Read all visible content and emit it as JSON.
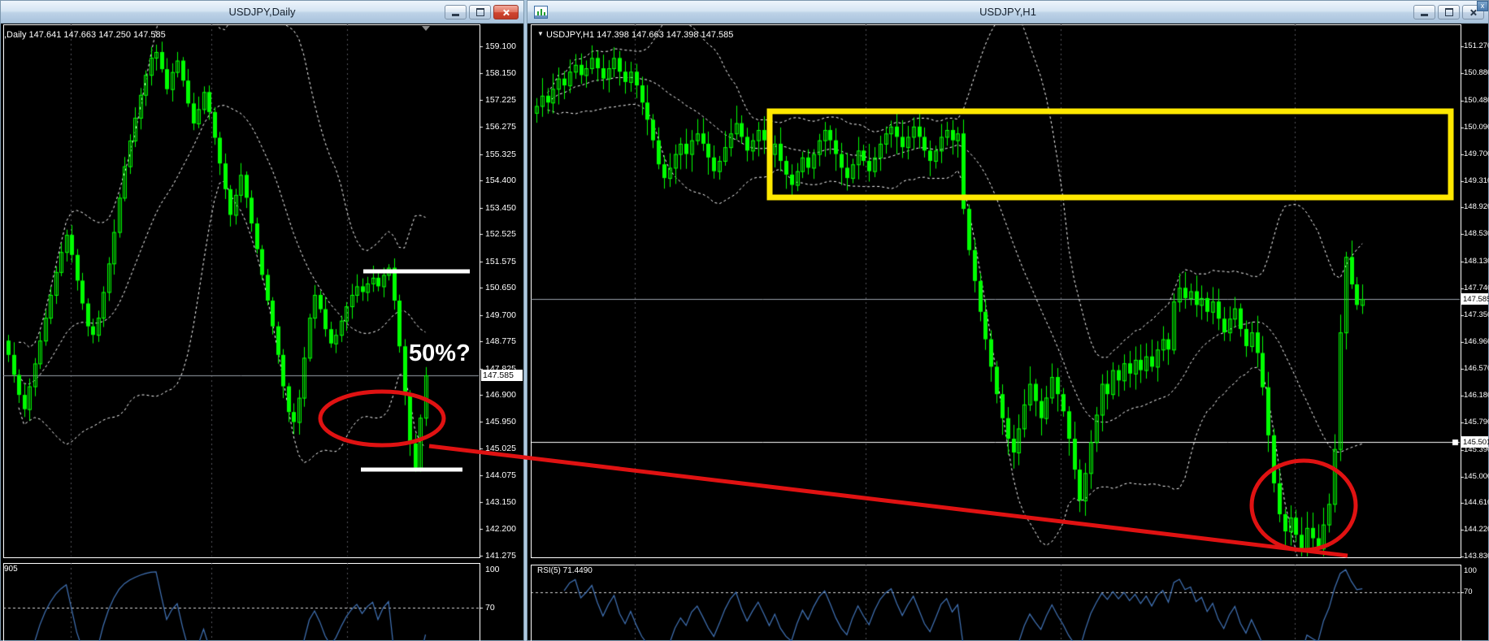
{
  "misc": {
    "corner_close_glyph": "x"
  },
  "colors": {
    "background": "#000000",
    "candle": "#00ff00",
    "bands": "#ffffff",
    "rsi_line": "#4274b8",
    "rsi_level": "#d9d9d9",
    "grid": "#55555c",
    "current_price_line": "#9aa2ab",
    "annotation_red": "#e01212",
    "annotation_yellow": "#ffe800",
    "annotation_white": "#ffffff"
  },
  "windows": {
    "left": {
      "title": "USDJPY,Daily",
      "window_buttons": [
        "minimize",
        "restore",
        "close"
      ],
      "ohlc_line": ",Daily 147.641 147.663 147.250 147.585",
      "price_axis": {
        "ticks": [
          "159.100",
          "158.150",
          "157.225",
          "156.275",
          "155.325",
          "154.400",
          "153.450",
          "152.525",
          "151.575",
          "150.650",
          "149.700",
          "148.775",
          "147.825",
          "146.900",
          "145.950",
          "145.025",
          "144.075",
          "143.150",
          "142.200",
          "141.275"
        ],
        "current_price": "147.585"
      },
      "rsi": {
        "label": "905",
        "level_top": "100",
        "level_70": "70"
      }
    },
    "right": {
      "title": "USDJPY,H1",
      "window_buttons": [
        "minimize",
        "restore",
        "close"
      ],
      "dropdown_glyph": "▼",
      "ohlc_line": "USDJPY,H1  147.398 147.663 147.398 147.585",
      "price_axis": {
        "ticks": [
          "151.270",
          "150.880",
          "150.480",
          "150.090",
          "149.700",
          "149.310",
          "148.920",
          "148.530",
          "148.130",
          "147.740",
          "147.350",
          "146.960",
          "146.570",
          "146.180",
          "145.790",
          "145.390",
          "145.000",
          "144.610",
          "144.220",
          "143.830"
        ],
        "current_price": "147.585",
        "hline_price": "145.501"
      },
      "rsi": {
        "label": "RSI(5) 71.4490",
        "level_top": "100",
        "level_70": "70"
      }
    }
  },
  "annotations": {
    "fifty_label": "50%?"
  },
  "chart_data": [
    {
      "type": "candlestick",
      "symbol": "USDJPY",
      "timeframe": "Daily",
      "title": "USDJPY,Daily",
      "ohlc_current": {
        "open": "147.641",
        "high": "147.663",
        "low": "147.250",
        "close": "147.585"
      },
      "y_ticks": [
        159.1,
        158.15,
        157.225,
        156.275,
        155.325,
        154.4,
        153.45,
        152.525,
        151.575,
        150.65,
        149.7,
        148.775,
        147.825,
        146.9,
        145.95,
        145.025,
        144.075,
        143.15,
        142.2,
        141.275
      ],
      "current_price": 147.585,
      "indicators": {
        "bollinger_period": 20,
        "bollinger_dev": 2,
        "rsi_period": 5,
        "rsi_level": 70
      },
      "first_open": 148.8,
      "closes": [
        148.3,
        147.6,
        146.9,
        146.4,
        147.2,
        148.0,
        148.8,
        149.6,
        150.4,
        151.2,
        151.9,
        152.5,
        151.8,
        150.9,
        150.1,
        149.3,
        149.0,
        149.6,
        150.5,
        151.5,
        152.6,
        153.8,
        154.9,
        155.8,
        156.6,
        157.4,
        158.1,
        158.7,
        158.9,
        158.3,
        157.6,
        158.2,
        158.6,
        157.9,
        157.1,
        156.4,
        156.9,
        157.5,
        156.8,
        155.9,
        155.0,
        154.1,
        153.2,
        153.9,
        154.6,
        153.8,
        152.9,
        152.0,
        151.1,
        150.2,
        149.3,
        148.3,
        147.2,
        146.3,
        145.95,
        146.8,
        148.2,
        149.6,
        150.4,
        149.9,
        149.2,
        148.7,
        149.0,
        149.5,
        150.0,
        150.4,
        150.7,
        150.5,
        150.8,
        151.0,
        150.7,
        151.1,
        151.35,
        150.2,
        148.6,
        146.9,
        145.2,
        144.35,
        146.1,
        147.585
      ]
    },
    {
      "type": "candlestick",
      "symbol": "USDJPY",
      "timeframe": "H1",
      "title": "USDJPY,H1",
      "ohlc_current": {
        "open": "147.398",
        "high": "147.663",
        "low": "147.398",
        "close": "147.585"
      },
      "y_ticks": [
        151.27,
        150.88,
        150.48,
        150.09,
        149.7,
        149.31,
        148.92,
        148.53,
        148.13,
        147.74,
        147.35,
        146.96,
        146.57,
        146.18,
        145.79,
        145.39,
        145.0,
        144.61,
        144.22,
        143.83
      ],
      "current_price": 147.585,
      "hline": 145.501,
      "indicators": {
        "bollinger_period": 20,
        "bollinger_dev": 2,
        "rsi_period": 5,
        "rsi_level": 70,
        "rsi_current": 71.449
      },
      "first_open": 150.3,
      "closes": [
        150.4,
        150.55,
        150.45,
        150.65,
        150.8,
        150.7,
        150.9,
        151.0,
        150.85,
        150.95,
        151.1,
        150.95,
        150.8,
        150.95,
        151.1,
        150.9,
        150.75,
        150.9,
        150.7,
        150.45,
        150.2,
        149.9,
        149.55,
        149.35,
        149.5,
        149.7,
        149.85,
        149.7,
        149.9,
        150.0,
        149.85,
        149.65,
        149.45,
        149.6,
        149.8,
        150.0,
        150.15,
        149.95,
        149.75,
        149.9,
        150.05,
        149.9,
        149.7,
        149.85,
        149.6,
        149.4,
        149.25,
        149.45,
        149.65,
        149.5,
        149.7,
        149.9,
        150.05,
        149.9,
        149.7,
        149.5,
        149.35,
        149.55,
        149.75,
        149.6,
        149.45,
        149.65,
        149.85,
        150.0,
        150.1,
        149.95,
        149.8,
        149.95,
        150.1,
        149.95,
        149.75,
        149.6,
        149.75,
        149.95,
        150.05,
        149.9,
        150.0,
        148.9,
        148.3,
        147.85,
        147.4,
        147.0,
        146.6,
        146.2,
        145.85,
        145.55,
        145.35,
        145.7,
        146.05,
        146.35,
        146.1,
        145.85,
        146.15,
        146.45,
        146.2,
        145.95,
        145.55,
        145.1,
        144.65,
        145.05,
        145.5,
        145.9,
        146.35,
        146.2,
        146.55,
        146.4,
        146.65,
        146.5,
        146.7,
        146.55,
        146.75,
        146.6,
        146.85,
        147.0,
        146.85,
        147.55,
        147.75,
        147.6,
        147.7,
        147.5,
        147.6,
        147.4,
        147.55,
        147.3,
        147.1,
        147.3,
        147.45,
        147.15,
        146.9,
        147.1,
        146.8,
        146.3,
        145.6,
        144.9,
        144.45,
        144.2,
        144.4,
        144.15,
        143.95,
        144.25,
        144.1,
        143.95,
        144.3,
        144.6,
        145.4,
        147.1,
        148.2,
        147.8,
        147.5,
        147.585
      ]
    }
  ]
}
